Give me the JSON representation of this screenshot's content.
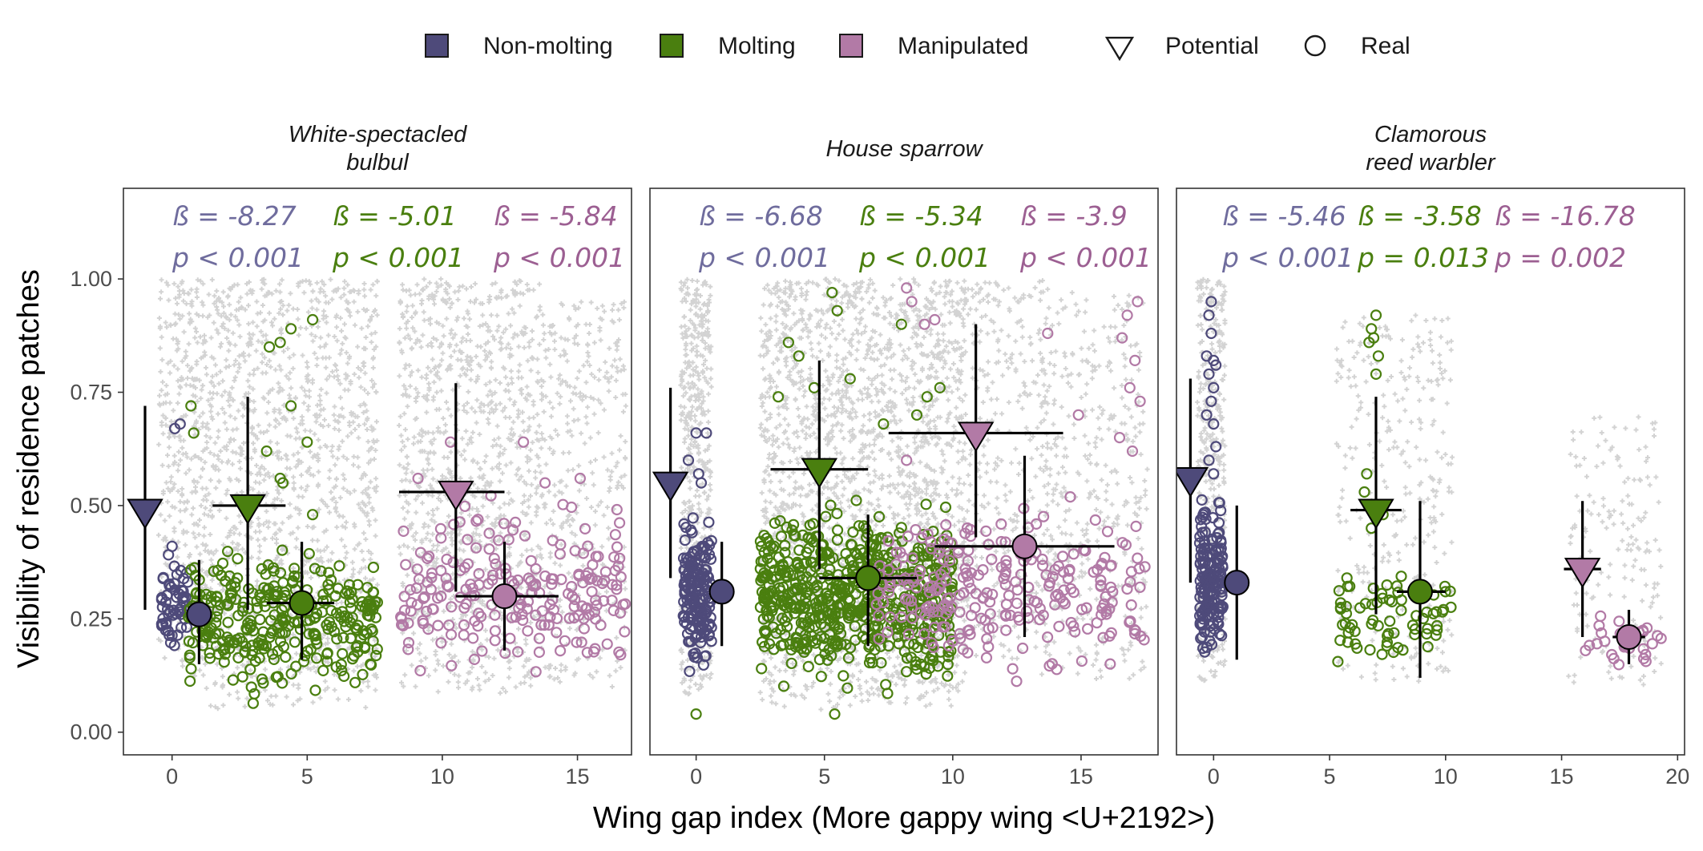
{
  "chart_data": {
    "type": "scatter",
    "xlabel": "Wing gap index (More gappy wing <U+2192>)",
    "ylabel": "Visibility of residence patches",
    "ylim": [
      -0.05,
      1.2
    ],
    "yticks": [
      "0.00",
      "0.25",
      "0.50",
      "0.75",
      "1.00"
    ],
    "legend": {
      "position": "top",
      "groups": [
        {
          "label": "Non-molting",
          "color": "#4e4a7a"
        },
        {
          "label": "Molting",
          "color": "#4a7f0f"
        },
        {
          "label": "Manipulated",
          "color": "#b27aa6"
        }
      ],
      "shapes": [
        {
          "label": "Potential",
          "shape": "triangle-down"
        },
        {
          "label": "Real",
          "shape": "circle"
        }
      ]
    },
    "colors": {
      "Non-molting": "#4e4a7a",
      "Molting": "#4a7f0f",
      "Manipulated": "#b27aa6",
      "Non-molting-text": "#6f6c9d",
      "Molting-text": "#4a7f0f",
      "Manipulated-text": "#9c5f92",
      "background_points": "#d3d3d3"
    },
    "panels": [
      {
        "title": "White-spectacled\nbulbul",
        "xlim": [
          -1.8,
          17.0
        ],
        "xticks": [
          0,
          5,
          10,
          15
        ],
        "stats": [
          {
            "group": "Non-molting",
            "beta": "ß = -8.27",
            "p": "p < 0.001"
          },
          {
            "group": "Molting",
            "beta": "ß = -5.01",
            "p": "p < 0.001"
          },
          {
            "group": "Manipulated",
            "beta": "ß = -5.84",
            "p": "p < 0.001"
          }
        ],
        "summary": [
          {
            "group": "Non-molting",
            "kind": "Potential",
            "x": -1.0,
            "y": 0.49,
            "ylo": 0.27,
            "yhi": 0.72,
            "xlo": null,
            "xhi": null
          },
          {
            "group": "Non-molting",
            "kind": "Real",
            "x": 1.0,
            "y": 0.26,
            "ylo": 0.15,
            "yhi": 0.38,
            "xlo": null,
            "xhi": null
          },
          {
            "group": "Molting",
            "kind": "Potential",
            "x": 2.8,
            "y": 0.5,
            "ylo": 0.27,
            "yhi": 0.74,
            "xlo": 1.5,
            "xhi": 4.2
          },
          {
            "group": "Molting",
            "kind": "Real",
            "x": 4.8,
            "y": 0.285,
            "ylo": 0.16,
            "yhi": 0.42,
            "xlo": 3.5,
            "xhi": 6.0
          },
          {
            "group": "Manipulated",
            "kind": "Potential",
            "x": 10.5,
            "y": 0.53,
            "ylo": 0.31,
            "yhi": 0.77,
            "xlo": 8.4,
            "xhi": 12.3
          },
          {
            "group": "Manipulated",
            "kind": "Real",
            "x": 12.3,
            "y": 0.3,
            "ylo": 0.18,
            "yhi": 0.42,
            "xlo": 10.5,
            "xhi": 14.3
          }
        ],
        "real_clusters": [
          {
            "group": "Non-molting",
            "xmin": -0.4,
            "xmax": 0.6,
            "ymin": 0.13,
            "ymax": 0.42,
            "n": 55,
            "extra": [
              [
                0.1,
                0.67
              ],
              [
                0.3,
                0.68
              ],
              [
                0.0,
                0.41
              ]
            ]
          },
          {
            "group": "Molting",
            "xmin": 0.6,
            "xmax": 7.6,
            "ymin": 0.05,
            "ymax": 0.45,
            "n": 320,
            "extra": [
              [
                3.6,
                0.85
              ],
              [
                4.0,
                0.86
              ],
              [
                5.2,
                0.91
              ],
              [
                4.4,
                0.89
              ],
              [
                0.7,
                0.72
              ],
              [
                0.8,
                0.66
              ],
              [
                3.5,
                0.62
              ],
              [
                4.4,
                0.72
              ],
              [
                5.0,
                0.64
              ],
              [
                4.1,
                0.55
              ],
              [
                5.2,
                0.48
              ],
              [
                4.0,
                0.56
              ]
            ]
          },
          {
            "group": "Manipulated",
            "xmin": 8.4,
            "xmax": 16.8,
            "ymin": 0.08,
            "ymax": 0.55,
            "n": 220,
            "extra": [
              [
                13.0,
                0.64
              ],
              [
                13.8,
                0.55
              ],
              [
                15.1,
                0.56
              ],
              [
                9.1,
                0.56
              ],
              [
                10.3,
                0.64
              ]
            ]
          }
        ],
        "background_clusters": [
          {
            "xmin": -0.5,
            "xmax": 1.2,
            "ymin": 0.12,
            "ymax": 1.0,
            "n": 350
          },
          {
            "xmin": 1.2,
            "xmax": 7.6,
            "ymin": 0.05,
            "ymax": 1.0,
            "n": 1300
          },
          {
            "xmin": 8.4,
            "xmax": 13.6,
            "ymin": 0.08,
            "ymax": 1.0,
            "n": 1050
          },
          {
            "xmin": 13.6,
            "xmax": 16.8,
            "ymin": 0.1,
            "ymax": 0.95,
            "n": 380
          }
        ]
      },
      {
        "title": "House sparrow",
        "xlim": [
          -1.8,
          18.0
        ],
        "xticks": [
          0,
          5,
          10,
          15
        ],
        "stats": [
          {
            "group": "Non-molting",
            "beta": "ß = -6.68",
            "p": "p < 0.001"
          },
          {
            "group": "Molting",
            "beta": "ß = -5.34",
            "p": "p < 0.001"
          },
          {
            "group": "Manipulated",
            "beta": "ß = -3.9",
            "p": "p < 0.001"
          }
        ],
        "summary": [
          {
            "group": "Non-molting",
            "kind": "Potential",
            "x": -1.0,
            "y": 0.55,
            "ylo": 0.34,
            "yhi": 0.76,
            "xlo": null,
            "xhi": null
          },
          {
            "group": "Non-molting",
            "kind": "Real",
            "x": 1.0,
            "y": 0.31,
            "ylo": 0.19,
            "yhi": 0.42,
            "xlo": null,
            "xhi": null
          },
          {
            "group": "Molting",
            "kind": "Potential",
            "x": 4.8,
            "y": 0.58,
            "ylo": 0.36,
            "yhi": 0.82,
            "xlo": 2.9,
            "xhi": 6.7
          },
          {
            "group": "Molting",
            "kind": "Real",
            "x": 6.7,
            "y": 0.34,
            "ylo": 0.19,
            "yhi": 0.48,
            "xlo": 4.8,
            "xhi": 8.6
          },
          {
            "group": "Manipulated",
            "kind": "Potential",
            "x": 10.9,
            "y": 0.66,
            "ylo": 0.43,
            "yhi": 0.9,
            "xlo": 7.5,
            "xhi": 14.3
          },
          {
            "group": "Manipulated",
            "kind": "Real",
            "x": 12.8,
            "y": 0.41,
            "ylo": 0.21,
            "yhi": 0.61,
            "xlo": 9.3,
            "xhi": 16.3
          }
        ],
        "real_clusters": [
          {
            "group": "Non-molting",
            "xmin": -0.5,
            "xmax": 0.6,
            "ymin": 0.09,
            "ymax": 0.5,
            "n": 170,
            "extra": [
              [
                0.0,
                0.66
              ],
              [
                0.4,
                0.66
              ],
              [
                0.2,
                0.55
              ],
              [
                -0.3,
                0.6
              ],
              [
                0.1,
                0.57
              ]
            ]
          },
          {
            "group": "Molting",
            "xmin": 2.5,
            "xmax": 10.0,
            "ymin": 0.05,
            "ymax": 0.55,
            "n": 620,
            "extra": [
              [
                5.3,
                0.97
              ],
              [
                4.0,
                0.83
              ],
              [
                5.5,
                0.93
              ],
              [
                3.6,
                0.86
              ],
              [
                4.6,
                0.76
              ],
              [
                6.0,
                0.78
              ],
              [
                8.0,
                0.9
              ],
              [
                9.0,
                0.74
              ],
              [
                8.6,
                0.7
              ],
              [
                7.3,
                0.68
              ],
              [
                9.5,
                0.76
              ],
              [
                3.2,
                0.74
              ],
              [
                0.0,
                0.04
              ],
              [
                5.4,
                0.04
              ]
            ]
          },
          {
            "group": "Manipulated",
            "xmin": 7.0,
            "xmax": 17.5,
            "ymin": 0.08,
            "ymax": 0.55,
            "n": 260,
            "extra": [
              [
                8.2,
                0.98
              ],
              [
                8.4,
                0.95
              ],
              [
                9.3,
                0.91
              ],
              [
                8.9,
                0.9
              ],
              [
                16.8,
                0.92
              ],
              [
                17.2,
                0.95
              ],
              [
                16.6,
                0.87
              ],
              [
                17.1,
                0.82
              ],
              [
                16.9,
                0.76
              ],
              [
                17.3,
                0.73
              ],
              [
                14.9,
                0.7
              ],
              [
                13.7,
                0.88
              ],
              [
                17.0,
                0.62
              ],
              [
                16.5,
                0.65
              ],
              [
                8.2,
                0.6
              ]
            ]
          }
        ],
        "background_clusters": [
          {
            "xmin": -0.6,
            "xmax": 0.6,
            "ymin": 0.08,
            "ymax": 1.0,
            "n": 500
          },
          {
            "xmin": 2.5,
            "xmax": 10.5,
            "ymin": 0.05,
            "ymax": 1.0,
            "n": 2100
          },
          {
            "xmin": 10.5,
            "xmax": 14.0,
            "ymin": 0.15,
            "ymax": 1.0,
            "n": 350
          },
          {
            "xmin": 13.4,
            "xmax": 17.6,
            "ymin": 0.1,
            "ymax": 0.97,
            "n": 380
          }
        ]
      },
      {
        "title": "Clamorous\nreed warbler",
        "xlim": [
          -1.6,
          20.3
        ],
        "xticks": [
          0,
          5,
          10,
          15,
          20
        ],
        "stats": [
          {
            "group": "Non-molting",
            "beta": "ß = -5.46",
            "p": "p < 0.001"
          },
          {
            "group": "Molting",
            "beta": "ß = -3.58",
            "p": "p = 0.013"
          },
          {
            "group": "Manipulated",
            "beta": "ß = -16.78",
            "p": "p = 0.002"
          }
        ],
        "summary": [
          {
            "group": "Non-molting",
            "kind": "Potential",
            "x": -1.0,
            "y": 0.56,
            "ylo": 0.33,
            "yhi": 0.78,
            "xlo": null,
            "xhi": null
          },
          {
            "group": "Non-molting",
            "kind": "Real",
            "x": 1.0,
            "y": 0.33,
            "ylo": 0.16,
            "yhi": 0.5,
            "xlo": null,
            "xhi": null
          },
          {
            "group": "Molting",
            "kind": "Potential",
            "x": 7.0,
            "y": 0.49,
            "ylo": 0.26,
            "yhi": 0.74,
            "xlo": 5.9,
            "xhi": 8.1
          },
          {
            "group": "Molting",
            "kind": "Real",
            "x": 8.9,
            "y": 0.31,
            "ylo": 0.12,
            "yhi": 0.51,
            "xlo": 7.9,
            "xhi": 10.0
          },
          {
            "group": "Manipulated",
            "kind": "Potential",
            "x": 15.9,
            "y": 0.36,
            "ylo": 0.21,
            "yhi": 0.51,
            "xlo": 15.1,
            "xhi": 16.7
          },
          {
            "group": "Manipulated",
            "kind": "Real",
            "x": 17.9,
            "y": 0.21,
            "ylo": 0.15,
            "yhi": 0.27,
            "xlo": 17.2,
            "xhi": 18.6
          }
        ],
        "real_clusters": [
          {
            "group": "Non-molting",
            "xmin": -0.6,
            "xmax": 0.4,
            "ymin": 0.11,
            "ymax": 0.55,
            "n": 160,
            "extra": [
              [
                -0.1,
                0.95
              ],
              [
                -0.2,
                0.92
              ],
              [
                -0.1,
                0.88
              ],
              [
                -0.3,
                0.83
              ],
              [
                0.0,
                0.82
              ],
              [
                0.1,
                0.81
              ],
              [
                -0.2,
                0.79
              ],
              [
                0.0,
                0.76
              ],
              [
                -0.1,
                0.73
              ],
              [
                -0.3,
                0.7
              ],
              [
                0.0,
                0.68
              ],
              [
                0.1,
                0.63
              ],
              [
                -0.2,
                0.6
              ],
              [
                0.0,
                0.57
              ]
            ]
          },
          {
            "group": "Molting",
            "xmin": 5.3,
            "xmax": 10.3,
            "ymin": 0.11,
            "ymax": 0.42,
            "n": 70,
            "extra": [
              [
                7.0,
                0.92
              ],
              [
                6.8,
                0.89
              ],
              [
                6.9,
                0.87
              ],
              [
                7.1,
                0.83
              ],
              [
                6.7,
                0.86
              ],
              [
                7.0,
                0.79
              ],
              [
                6.6,
                0.57
              ],
              [
                6.5,
                0.53
              ],
              [
                7.3,
                0.48
              ],
              [
                6.8,
                0.45
              ]
            ]
          },
          {
            "group": "Manipulated",
            "xmin": 15.8,
            "xmax": 19.4,
            "ymin": 0.11,
            "ymax": 0.28,
            "n": 28,
            "extra": []
          }
        ],
        "background_clusters": [
          {
            "xmin": -0.7,
            "xmax": 0.5,
            "ymin": 0.11,
            "ymax": 1.0,
            "n": 420
          },
          {
            "xmin": 5.3,
            "xmax": 10.3,
            "ymin": 0.1,
            "ymax": 0.92,
            "n": 320
          },
          {
            "xmin": 15.3,
            "xmax": 19.3,
            "ymin": 0.1,
            "ymax": 0.7,
            "n": 170
          }
        ]
      }
    ]
  }
}
